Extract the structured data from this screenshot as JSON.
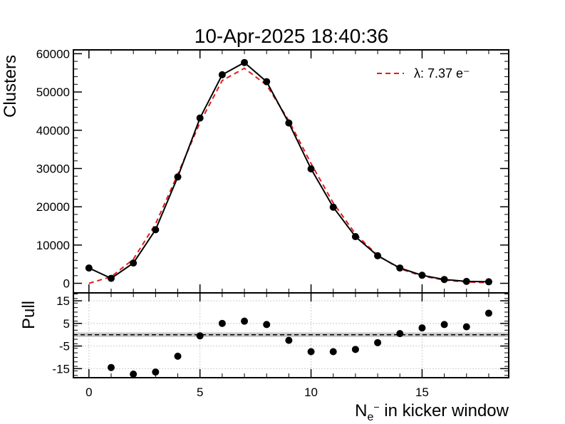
{
  "chart_data": [
    {
      "type": "line",
      "title": "10-Apr-2025 18:40:36",
      "ylabel": "Clusters",
      "xlabel": "",
      "xlim": [
        -0.7,
        18.9
      ],
      "ylim": [
        -2500,
        61000
      ],
      "x_ticks": [
        0,
        5,
        10,
        15
      ],
      "y_ticks": [
        0,
        10000,
        20000,
        30000,
        40000,
        50000,
        60000
      ],
      "grid": false,
      "legend_position": "top-right",
      "series": [
        {
          "name": "",
          "kind": "data-points-with-line",
          "color": "#000000",
          "x": [
            0,
            1,
            2,
            3,
            4,
            5,
            6,
            7,
            8,
            9,
            10,
            11,
            12,
            13,
            14,
            15,
            16,
            17,
            18
          ],
          "y": [
            4000,
            1300,
            5300,
            14000,
            27800,
            43200,
            54500,
            57700,
            52700,
            41900,
            29900,
            19900,
            12200,
            7200,
            4000,
            2100,
            1000,
            500,
            400
          ]
        },
        {
          "name": "λ: 7.37 e⁻",
          "kind": "fit-dashed",
          "color": "#e41a1c",
          "x": [
            0,
            1,
            2,
            3,
            4,
            5,
            6,
            7,
            8,
            9,
            10,
            11,
            12,
            13,
            14,
            15,
            16,
            17,
            18
          ],
          "y": [
            0,
            1700,
            6300,
            15500,
            28500,
            42000,
            53000,
            56200,
            51800,
            42500,
            31300,
            21000,
            12900,
            7300,
            3800,
            1900,
            850,
            350,
            150
          ]
        }
      ]
    },
    {
      "type": "scatter",
      "title": "",
      "ylabel": "Pull",
      "xlabel": "Nₑ⁻ in kicker window",
      "xlim": [
        -0.7,
        18.9
      ],
      "ylim": [
        -19,
        18.5
      ],
      "x_ticks": [
        0,
        5,
        10,
        15
      ],
      "x_tick_labels": [
        "0",
        "5",
        "10",
        "15"
      ],
      "y_ticks": [
        -15,
        -5,
        5,
        15
      ],
      "grid": true,
      "band": [
        -1,
        1
      ],
      "reference_line": 0,
      "series": [
        {
          "name": "",
          "color": "#000000",
          "x": [
            1,
            2,
            3,
            4,
            5,
            6,
            7,
            8,
            9,
            10,
            11,
            12,
            13,
            14,
            15,
            16,
            17,
            18
          ],
          "y": [
            -14.5,
            -17.5,
            -16.5,
            -9.5,
            -0.5,
            5,
            6,
            4.5,
            -2.5,
            -7.5,
            -7.5,
            -6.5,
            -3.5,
            0.5,
            3,
            4.5,
            3.5,
            9.5
          ]
        }
      ]
    }
  ],
  "labels": {
    "title": "10-Apr-2025 18:40:36",
    "ylabel_top": "Clusters",
    "ylabel_bottom": "Pull",
    "xlabel_main": "N",
    "xlabel_sub": "e",
    "xlabel_sup": "−",
    "xlabel_rest": " in kicker window",
    "legend_label": "λ: 7.37 e⁻"
  }
}
